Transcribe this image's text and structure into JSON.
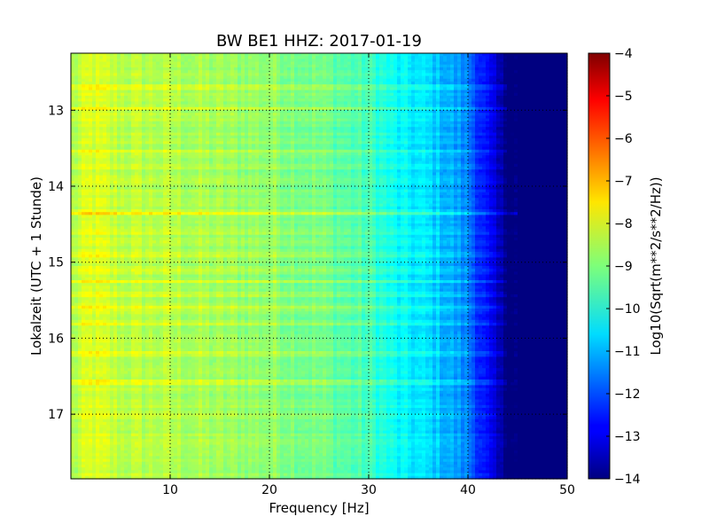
{
  "chart_data": {
    "type": "heatmap",
    "title": "BW BE1 HHZ: 2017-01-19",
    "xlabel": "Frequency [Hz]",
    "ylabel": "Lokalzeit (UTC + 1 Stunde)",
    "xlim": [
      0,
      50
    ],
    "ylim": [
      12.25,
      17.85
    ],
    "y_inverted": true,
    "x_ticks": [
      10,
      20,
      30,
      40,
      50
    ],
    "x_tick_labels": [
      "10",
      "20",
      "30",
      "40",
      "50"
    ],
    "y_ticks": [
      13,
      14,
      15,
      16,
      17
    ],
    "y_tick_labels": [
      "13",
      "14",
      "15",
      "16",
      "17"
    ],
    "grid": true,
    "grid_style": "dotted",
    "colormap": "jet",
    "colorbar": {
      "label": "Log10(Sqrt(m**2/s**2/Hz))",
      "range": [
        -14,
        -4
      ],
      "ticks": [
        -4,
        -5,
        -6,
        -7,
        -8,
        -9,
        -10,
        -11,
        -12,
        -13,
        -14
      ],
      "tick_labels": [
        "−4",
        "−5",
        "−6",
        "−7",
        "−8",
        "−9",
        "−10",
        "−11",
        "−12",
        "−13",
        "−14"
      ]
    },
    "frequency_profile": {
      "frequency_hz": [
        0,
        2,
        5,
        10,
        15,
        20,
        25,
        30,
        33,
        36,
        38,
        40,
        41.5,
        43,
        44,
        45,
        47,
        50
      ],
      "log_amplitude": [
        -8.6,
        -8.1,
        -8.4,
        -8.5,
        -8.7,
        -8.8,
        -9.1,
        -9.6,
        -10.3,
        -10.6,
        -11.0,
        -11.5,
        -12.5,
        -13.5,
        -14,
        -14,
        -14,
        -14
      ]
    },
    "bright_time_bands": [
      {
        "time": 12.7,
        "strength": 0.7,
        "extent_hz": 44
      },
      {
        "time": 12.85,
        "strength": 0.4,
        "extent_hz": 43
      },
      {
        "time": 12.97,
        "strength": 0.6,
        "extent_hz": 44
      },
      {
        "time": 13.55,
        "strength": 0.5,
        "extent_hz": 44
      },
      {
        "time": 13.75,
        "strength": 0.4,
        "extent_hz": 44
      },
      {
        "time": 14.35,
        "strength": 1.0,
        "extent_hz": 46
      },
      {
        "time": 14.6,
        "strength": 0.5,
        "extent_hz": 45
      },
      {
        "time": 14.75,
        "strength": 0.5,
        "extent_hz": 44
      },
      {
        "time": 14.9,
        "strength": 0.6,
        "extent_hz": 44
      },
      {
        "time": 15.1,
        "strength": 0.4,
        "extent_hz": 44
      },
      {
        "time": 15.25,
        "strength": 0.5,
        "extent_hz": 44
      },
      {
        "time": 15.42,
        "strength": 0.5,
        "extent_hz": 44
      },
      {
        "time": 15.6,
        "strength": 0.7,
        "extent_hz": 44
      },
      {
        "time": 15.8,
        "strength": 0.5,
        "extent_hz": 44
      },
      {
        "time": 16.2,
        "strength": 0.5,
        "extent_hz": 44
      },
      {
        "time": 16.58,
        "strength": 0.6,
        "extent_hz": 44
      },
      {
        "time": 17.0,
        "strength": 0.3,
        "extent_hz": 43
      }
    ]
  }
}
